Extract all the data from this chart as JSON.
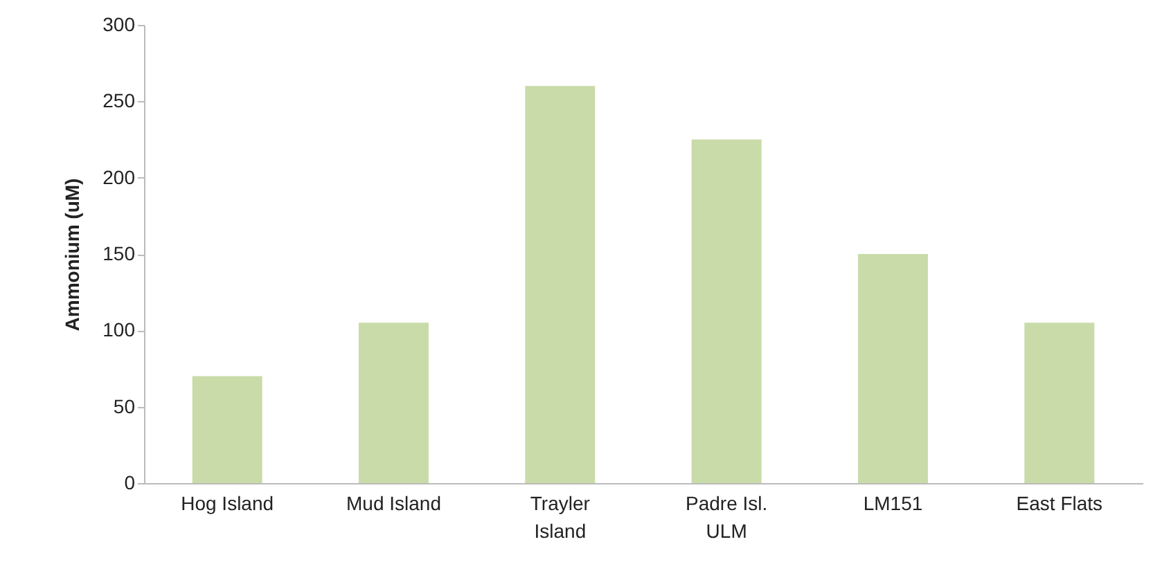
{
  "chart_data": {
    "type": "bar",
    "ylabel": "Ammonium (uM)",
    "categories": [
      "Hog Island",
      "Mud Island",
      "Trayler Island",
      "Padre Isl. ULM",
      "LM151",
      "East Flats"
    ],
    "values": [
      70,
      105,
      260,
      225,
      150,
      105
    ],
    "color": "#c9dba8",
    "ylim": [
      0,
      300
    ],
    "yticks": [
      0,
      50,
      100,
      150,
      200,
      250,
      300
    ],
    "grid": false
  }
}
